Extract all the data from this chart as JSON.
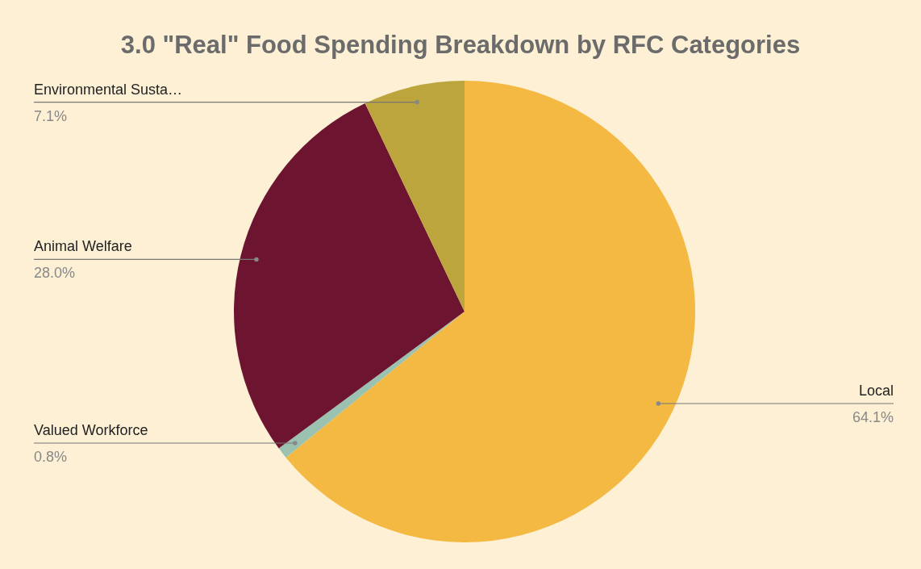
{
  "chart_data": {
    "type": "pie",
    "title": "3.0 \"Real\" Food Spending Breakdown by RFC Categories",
    "categories": [
      "Local",
      "Valued Workforce",
      "Animal Welfare",
      "Environmental Susta…"
    ],
    "values": [
      64.1,
      0.8,
      28.0,
      7.1
    ],
    "colors": [
      "#f4b942",
      "#9bc2b0",
      "#6d1530",
      "#bca53c"
    ],
    "value_labels": [
      "64.1%",
      "0.8%",
      "28.0%",
      "7.1%"
    ]
  }
}
